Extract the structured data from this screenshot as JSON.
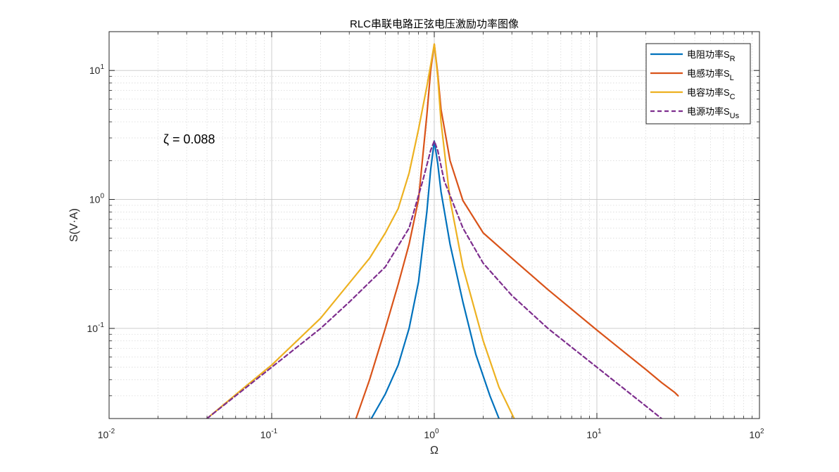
{
  "chart_data": {
    "type": "line",
    "title": "RLC串联电路正弦电压激励功率图像",
    "xlabel": "Ω",
    "ylabel": "S(V·A)",
    "xscale": "log",
    "yscale": "log",
    "xlim": [
      0.01,
      100
    ],
    "ylim": [
      0.02,
      20
    ],
    "grid": true,
    "legend_position": "top-right",
    "x_ticks": [
      {
        "base": "10",
        "exp": "-2"
      },
      {
        "base": "10",
        "exp": "-1"
      },
      {
        "base": "10",
        "exp": "0"
      },
      {
        "base": "10",
        "exp": "1"
      },
      {
        "base": "10",
        "exp": "2"
      }
    ],
    "y_ticks": [
      {
        "base": "10",
        "exp": "-1"
      },
      {
        "base": "10",
        "exp": "0"
      },
      {
        "base": "10",
        "exp": "1"
      }
    ],
    "annotation": "ζ = 0.088",
    "series": [
      {
        "name": "电阻功率",
        "sub": "R",
        "color": "#0072BD",
        "dash": false,
        "points": [
          [
            0.41,
            0.02
          ],
          [
            0.5,
            0.031
          ],
          [
            0.6,
            0.052
          ],
          [
            0.7,
            0.1
          ],
          [
            0.8,
            0.23
          ],
          [
            0.9,
            0.8
          ],
          [
            0.95,
            1.7
          ],
          [
            1.0,
            2.84
          ],
          [
            1.05,
            1.9
          ],
          [
            1.1,
            1.15
          ],
          [
            1.25,
            0.45
          ],
          [
            1.5,
            0.16
          ],
          [
            1.8,
            0.063
          ],
          [
            2.2,
            0.03
          ],
          [
            2.5,
            0.02
          ]
        ]
      },
      {
        "name": "电感功率",
        "sub": "L",
        "color": "#D95319",
        "dash": false,
        "points": [
          [
            0.33,
            0.02
          ],
          [
            0.4,
            0.04
          ],
          [
            0.5,
            0.1
          ],
          [
            0.6,
            0.22
          ],
          [
            0.7,
            0.45
          ],
          [
            0.8,
            1.0
          ],
          [
            0.9,
            4.5
          ],
          [
            0.95,
            10
          ],
          [
            1.0,
            16
          ],
          [
            1.05,
            9.5
          ],
          [
            1.1,
            5.0
          ],
          [
            1.25,
            2.0
          ],
          [
            1.5,
            0.98
          ],
          [
            2.0,
            0.55
          ],
          [
            3.0,
            0.35
          ],
          [
            5.0,
            0.2
          ],
          [
            10,
            0.097
          ],
          [
            20,
            0.048
          ],
          [
            25,
            0.038
          ],
          [
            30,
            0.032
          ],
          [
            31.6,
            0.03
          ]
        ]
      },
      {
        "name": "电容功率",
        "sub": "C",
        "color": "#EDB120",
        "dash": false,
        "points": [
          [
            0.04,
            0.02
          ],
          [
            0.07,
            0.036
          ],
          [
            0.1,
            0.052
          ],
          [
            0.2,
            0.12
          ],
          [
            0.4,
            0.35
          ],
          [
            0.5,
            0.55
          ],
          [
            0.6,
            0.85
          ],
          [
            0.7,
            1.6
          ],
          [
            0.8,
            3.5
          ],
          [
            0.9,
            7.5
          ],
          [
            0.95,
            11
          ],
          [
            1.0,
            16
          ],
          [
            1.05,
            9
          ],
          [
            1.1,
            4.0
          ],
          [
            1.25,
            1.0
          ],
          [
            1.5,
            0.3
          ],
          [
            2.0,
            0.08
          ],
          [
            2.5,
            0.035
          ],
          [
            3.1,
            0.02
          ]
        ]
      },
      {
        "name": "电源功率",
        "sub": "Us",
        "color": "#7E2F8E",
        "dash": true,
        "points": [
          [
            0.04,
            0.02
          ],
          [
            0.07,
            0.035
          ],
          [
            0.1,
            0.05
          ],
          [
            0.2,
            0.1
          ],
          [
            0.3,
            0.16
          ],
          [
            0.5,
            0.3
          ],
          [
            0.7,
            0.6
          ],
          [
            0.85,
            1.4
          ],
          [
            0.95,
            2.4
          ],
          [
            1.0,
            2.84
          ],
          [
            1.05,
            2.4
          ],
          [
            1.15,
            1.4
          ],
          [
            1.5,
            0.6
          ],
          [
            2.0,
            0.32
          ],
          [
            3.0,
            0.18
          ],
          [
            5.0,
            0.1
          ],
          [
            10,
            0.05
          ],
          [
            20,
            0.025
          ],
          [
            25,
            0.02
          ]
        ]
      }
    ]
  }
}
